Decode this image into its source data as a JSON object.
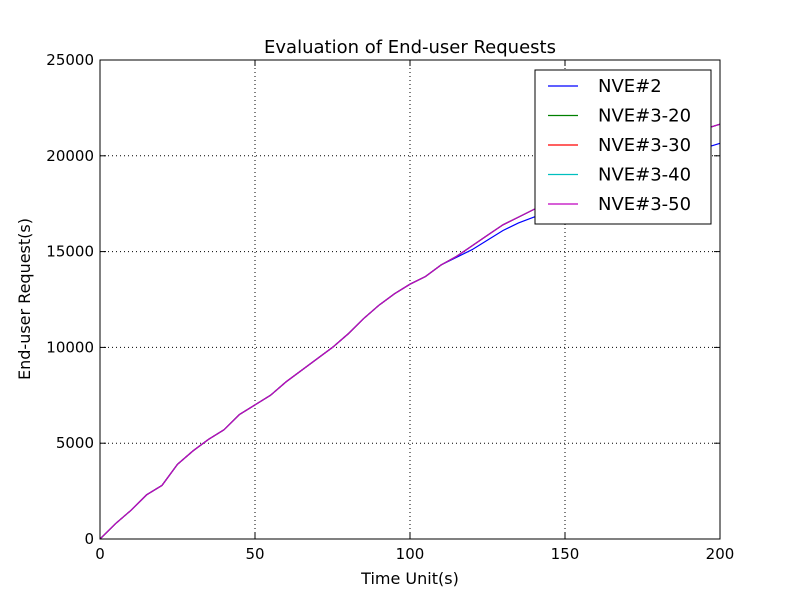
{
  "chart_data": {
    "type": "line",
    "title": "Evaluation of End-user Requests",
    "xlabel": "Time Unit(s)",
    "ylabel": "End-user Request(s)",
    "xlim": [
      0,
      200
    ],
    "ylim": [
      0,
      25000
    ],
    "xticks": [
      0,
      50,
      100,
      150,
      200
    ],
    "yticks": [
      0,
      5000,
      10000,
      15000,
      20000,
      25000
    ],
    "grid": true,
    "legend_position": "top-right",
    "x": [
      0,
      5,
      10,
      15,
      20,
      25,
      30,
      35,
      40,
      45,
      50,
      55,
      60,
      65,
      70,
      75,
      80,
      85,
      90,
      95,
      100,
      105,
      110,
      115,
      120,
      125,
      130,
      135,
      140,
      145,
      150,
      155,
      160,
      165,
      170,
      175,
      180,
      185,
      190,
      195,
      200
    ],
    "series": [
      {
        "name": "NVE#2",
        "color": "#0000ff",
        "values": [
          0,
          800,
          1500,
          2300,
          2800,
          3900,
          4600,
          5200,
          5700,
          6500,
          7000,
          7500,
          8200,
          8800,
          9400,
          10000,
          10700,
          11500,
          12200,
          12800,
          13300,
          13700,
          14300,
          14700,
          15100,
          15600,
          16100,
          16500,
          16800,
          17100,
          17400,
          17800,
          18200,
          18600,
          19000,
          19300,
          19600,
          19900,
          20200,
          20400,
          20650
        ]
      },
      {
        "name": "NVE#3-20",
        "color": "#008000",
        "values": [
          0,
          800,
          1500,
          2300,
          2800,
          3900,
          4600,
          5200,
          5700,
          6500,
          7000,
          7500,
          8200,
          8800,
          9400,
          10000,
          10700,
          11500,
          12200,
          12800,
          13300,
          13700,
          14300,
          14750,
          15300,
          15850,
          16400,
          16800,
          17200,
          17600,
          18000,
          18450,
          18900,
          19350,
          19750,
          20150,
          20500,
          20850,
          21150,
          21400,
          21650
        ]
      },
      {
        "name": "NVE#3-30",
        "color": "#ff0000",
        "values": [
          0,
          800,
          1500,
          2300,
          2800,
          3900,
          4600,
          5200,
          5700,
          6500,
          7000,
          7500,
          8200,
          8800,
          9400,
          10000,
          10700,
          11500,
          12200,
          12800,
          13300,
          13700,
          14300,
          14750,
          15300,
          15850,
          16400,
          16800,
          17200,
          17600,
          18000,
          18450,
          18900,
          19350,
          19750,
          20150,
          20500,
          20850,
          21150,
          21400,
          21650
        ]
      },
      {
        "name": "NVE#3-40",
        "color": "#00bfbf",
        "values": [
          0,
          800,
          1500,
          2300,
          2800,
          3900,
          4600,
          5200,
          5700,
          6500,
          7000,
          7500,
          8200,
          8800,
          9400,
          10000,
          10700,
          11500,
          12200,
          12800,
          13300,
          13700,
          14300,
          14750,
          15300,
          15850,
          16400,
          16800,
          17200,
          17600,
          18000,
          18450,
          18900,
          19350,
          19750,
          20150,
          20500,
          20850,
          21150,
          21400,
          21650
        ]
      },
      {
        "name": "NVE#3-50",
        "color": "#bf00bf",
        "values": [
          0,
          800,
          1500,
          2300,
          2800,
          3900,
          4600,
          5200,
          5700,
          6500,
          7000,
          7500,
          8200,
          8800,
          9400,
          10000,
          10700,
          11500,
          12200,
          12800,
          13300,
          13700,
          14300,
          14750,
          15300,
          15850,
          16400,
          16800,
          17200,
          17600,
          18000,
          18450,
          18900,
          19350,
          19750,
          20150,
          20500,
          20850,
          21150,
          21400,
          21650
        ]
      }
    ]
  }
}
